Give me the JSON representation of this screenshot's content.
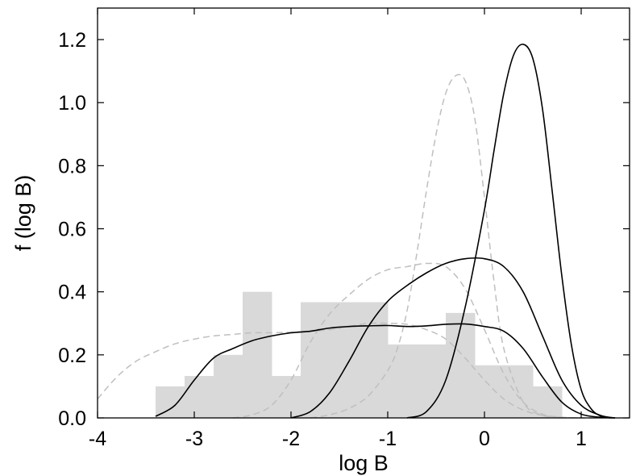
{
  "chart_data": {
    "type": "line",
    "title": "",
    "xlabel": "log B",
    "ylabel": "f (log B)",
    "xlim": [
      -4,
      1.5
    ],
    "ylim": [
      0,
      1.3
    ],
    "x_ticks": [
      -4,
      -3,
      -2,
      -1,
      0,
      1
    ],
    "x_tick_labels": [
      "-4",
      "-3",
      "-2",
      "-1",
      "0",
      "1"
    ],
    "y_ticks": [
      0,
      0.2,
      0.4,
      0.6,
      0.8,
      1.0,
      1.2
    ],
    "y_tick_labels": [
      "0.0",
      "0.2",
      "0.4",
      "0.6",
      "0.8",
      "1.0",
      "1.2"
    ],
    "grid": false,
    "legend": "none",
    "colors": {
      "histogram": "#d9d9d9",
      "solid": "#000000",
      "dashed": "#bfbfbf"
    },
    "histogram": {
      "bin_edges": [
        -3.4,
        -3.1,
        -2.8,
        -2.5,
        -2.2,
        -1.9,
        -1.6,
        -1.3,
        -1.0,
        -0.7,
        -0.4,
        -0.1,
        0.2,
        0.5,
        0.8
      ],
      "values": [
        0.1,
        0.133,
        0.2,
        0.4,
        0.133,
        0.367,
        0.367,
        0.367,
        0.233,
        0.233,
        0.333,
        0.167,
        0.167,
        0.1
      ]
    },
    "series": [
      {
        "style": "solid",
        "x": [
          -3.4,
          -3.2,
          -3.0,
          -2.8,
          -2.6,
          -2.4,
          -2.2,
          -2.0,
          -1.8,
          -1.6,
          -1.4,
          -1.2,
          -1.0,
          -0.8,
          -0.6,
          -0.4,
          -0.2,
          0.0,
          0.2,
          0.4,
          0.6,
          0.8,
          1.0,
          1.2,
          1.35
        ],
        "y": [
          0.005,
          0.04,
          0.12,
          0.19,
          0.22,
          0.245,
          0.26,
          0.27,
          0.275,
          0.285,
          0.29,
          0.292,
          0.293,
          0.29,
          0.292,
          0.297,
          0.298,
          0.29,
          0.275,
          0.22,
          0.13,
          0.05,
          0.012,
          0.002,
          0.0
        ]
      },
      {
        "style": "solid",
        "x": [
          -2.0,
          -1.8,
          -1.6,
          -1.4,
          -1.2,
          -1.0,
          -0.8,
          -0.6,
          -0.4,
          -0.2,
          0.0,
          0.2,
          0.4,
          0.6,
          0.8,
          1.0,
          1.2,
          1.35
        ],
        "y": [
          0.0,
          0.02,
          0.08,
          0.18,
          0.29,
          0.37,
          0.42,
          0.46,
          0.49,
          0.505,
          0.505,
          0.48,
          0.4,
          0.26,
          0.12,
          0.04,
          0.008,
          0.0
        ]
      },
      {
        "style": "solid",
        "x": [
          -0.8,
          -0.6,
          -0.4,
          -0.2,
          0.0,
          0.1,
          0.2,
          0.3,
          0.4,
          0.5,
          0.6,
          0.7,
          0.8,
          0.9,
          1.0,
          1.1,
          1.2,
          1.3
        ],
        "y": [
          0.0,
          0.02,
          0.12,
          0.35,
          0.66,
          0.85,
          1.03,
          1.15,
          1.185,
          1.14,
          0.98,
          0.72,
          0.45,
          0.23,
          0.09,
          0.03,
          0.006,
          0.0
        ]
      },
      {
        "style": "dashed",
        "x": [
          -4.0,
          -3.8,
          -3.6,
          -3.4,
          -3.2,
          -3.0,
          -2.8,
          -2.6,
          -2.4,
          -2.2,
          -2.0,
          -1.8,
          -1.6,
          -1.4,
          -1.2,
          -1.0,
          -0.8,
          -0.6,
          -0.4,
          -0.2,
          0.0,
          0.2,
          0.4,
          0.6,
          0.8,
          1.0,
          1.2,
          1.35
        ],
        "y": [
          0.06,
          0.13,
          0.18,
          0.21,
          0.235,
          0.25,
          0.26,
          0.265,
          0.27,
          0.27,
          0.272,
          0.275,
          0.28,
          0.29,
          0.3,
          0.3,
          0.297,
          0.28,
          0.25,
          0.19,
          0.12,
          0.06,
          0.025,
          0.008,
          0.002,
          0.0,
          0.0,
          0.0
        ]
      },
      {
        "style": "dashed",
        "x": [
          -2.6,
          -2.4,
          -2.2,
          -2.0,
          -1.8,
          -1.6,
          -1.4,
          -1.2,
          -1.0,
          -0.8,
          -0.6,
          -0.4,
          -0.2,
          0.0,
          0.2,
          0.4,
          0.6,
          0.8,
          1.0
        ],
        "y": [
          0.0,
          0.01,
          0.04,
          0.12,
          0.24,
          0.33,
          0.39,
          0.44,
          0.47,
          0.48,
          0.49,
          0.48,
          0.41,
          0.28,
          0.14,
          0.05,
          0.012,
          0.002,
          0.0
        ]
      },
      {
        "style": "dashed",
        "x": [
          -1.8,
          -1.6,
          -1.4,
          -1.2,
          -1.0,
          -0.9,
          -0.8,
          -0.7,
          -0.6,
          -0.5,
          -0.4,
          -0.3,
          -0.2,
          -0.1,
          0.0,
          0.1,
          0.2,
          0.4,
          0.6,
          0.8
        ],
        "y": [
          0.0,
          0.01,
          0.03,
          0.07,
          0.15,
          0.22,
          0.34,
          0.52,
          0.72,
          0.9,
          1.03,
          1.085,
          1.07,
          0.95,
          0.7,
          0.43,
          0.22,
          0.05,
          0.008,
          0.0
        ]
      }
    ]
  }
}
